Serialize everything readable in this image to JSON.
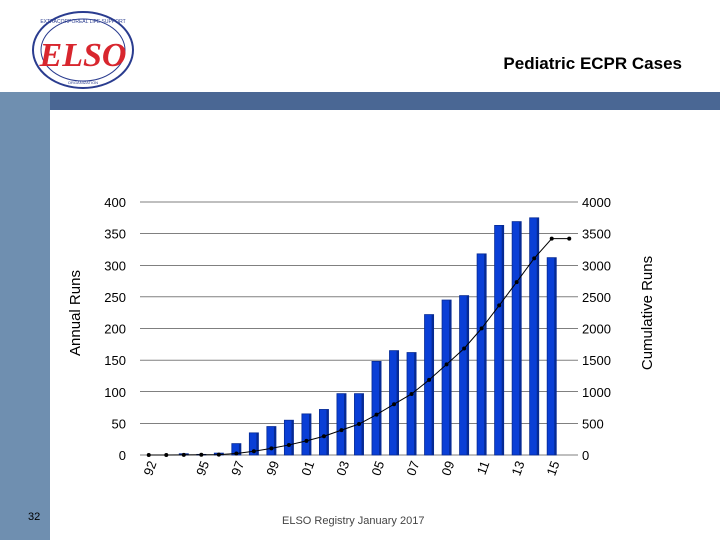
{
  "slide": {
    "title": "Pediatric ECPR Cases",
    "number": "32",
    "footer": "ELSO Registry January 2017",
    "logo_text": "EXTRACORPOREAL LIFE SUPPORT ORGANIZATION"
  },
  "colors": {
    "bar": "#0a3fd6",
    "bar_dark": "#062a94",
    "line": "#000000",
    "grid": "#000000",
    "band": "#4a6794",
    "stripe": "#6f8fb0",
    "logo_red": "#d8262e",
    "logo_blue": "#2a3c8f"
  },
  "chart_data": {
    "type": "bar",
    "title": "",
    "xlabel": "",
    "ylabel": "Annual Runs",
    "y2label": "Cumulative Runs",
    "ylim": [
      0,
      400
    ],
    "y2lim": [
      0,
      4000
    ],
    "yticks": [
      0,
      50,
      100,
      150,
      200,
      250,
      300,
      350,
      400
    ],
    "y2ticks": [
      0,
      500,
      1000,
      1500,
      2000,
      2500,
      3000,
      3500,
      4000
    ],
    "grid": true,
    "legend": "none",
    "x": [
      1992,
      1993,
      1994,
      1995,
      1996,
      1997,
      1998,
      1999,
      2000,
      2001,
      2002,
      2003,
      2004,
      2005,
      2006,
      2007,
      2008,
      2009,
      2010,
      2011,
      2012,
      2013,
      2014,
      2015,
      2016
    ],
    "xtick_labels": [
      "92",
      "95",
      "97",
      "99",
      "01",
      "03",
      "05",
      "07",
      "09",
      "11",
      "13",
      "15"
    ],
    "xtick_years": [
      1992,
      1995,
      1997,
      1999,
      2001,
      2003,
      2005,
      2007,
      2009,
      2011,
      2013,
      2015
    ],
    "series": [
      {
        "type": "bar",
        "axis": "left",
        "values": [
          0,
          0,
          2,
          1,
          3,
          18,
          35,
          45,
          55,
          65,
          72,
          97,
          97,
          148,
          165,
          162,
          222,
          245,
          252,
          318,
          363,
          369,
          375,
          312,
          0
        ]
      },
      {
        "type": "line",
        "axis": "right",
        "values": [
          0,
          0,
          2,
          3,
          6,
          24,
          59,
          104,
          159,
          224,
          296,
          393,
          490,
          638,
          803,
          965,
          1187,
          1432,
          1684,
          2002,
          2365,
          2734,
          3109,
          3421,
          3421
        ]
      }
    ]
  }
}
